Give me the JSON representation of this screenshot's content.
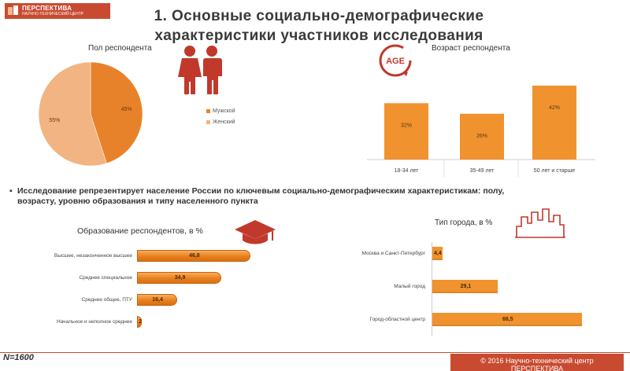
{
  "header": {
    "logo_name": "ПЕРСПЕКТИВА",
    "logo_sub": "НАУЧНО-ТЕХНИЧЕСКИЙ ЦЕНТР",
    "title_line1": "1. Основные социально-демографические",
    "title_line2": "характеристики участников исследования"
  },
  "gender": {
    "title": "Пол респондента",
    "legend": [
      "Мужской",
      "Женский"
    ],
    "icon": "people-icon"
  },
  "age": {
    "title": "Возраст респондента",
    "badge": "AGE"
  },
  "bullet": {
    "text": "Исследование репрезентирует население России по ключевым социально-демографическим характеристикам: полу, возрасту, уровню образования и типу населенного пункта"
  },
  "education": {
    "title": "Образование респондентов, в %",
    "icon": "graduation-cap-icon"
  },
  "city": {
    "title": "Тип города, в %",
    "icon": "city-skyline-icon"
  },
  "footer": {
    "sample": "N=1600",
    "copyright": "© 2016 Научно-технический центр",
    "copyright2": "ПЕРСПЕКТИВА"
  },
  "colors": {
    "brand": "#c84b31",
    "male": "#e8822a",
    "female": "#f2b483",
    "bar": "#f0922e"
  },
  "chart_data": [
    {
      "type": "pie",
      "title": "Пол респондента",
      "categories": [
        "Мужской",
        "Женский"
      ],
      "values": [
        45,
        55
      ],
      "labels": [
        "45%",
        "55%"
      ],
      "legend": "right"
    },
    {
      "type": "bar",
      "title": "Возраст респондента",
      "categories": [
        "18-34 лет",
        "35-49 лет",
        "50 лет и старше"
      ],
      "values": [
        32,
        26,
        42
      ],
      "labels": [
        "32%",
        "26%",
        "42%"
      ]
    },
    {
      "type": "bar",
      "orientation": "horizontal",
      "title": "Образование респондентов, в %",
      "categories": [
        "Высшее, незаконченное высшее",
        "Среднее специальное",
        "Среднее общее, ПТУ",
        "Начальное и неполное среднее"
      ],
      "values": [
        46.8,
        34.9,
        16.4,
        2
      ],
      "labels": [
        "46,8",
        "34,9",
        "16,4",
        "2"
      ],
      "xlim": [
        0,
        50
      ]
    },
    {
      "type": "bar",
      "orientation": "horizontal",
      "title": "Тип города, в %",
      "categories": [
        "Москва и Санкт-Петербург",
        "Малый город",
        "Город-областной центр"
      ],
      "values": [
        4.4,
        29.1,
        66.5
      ],
      "labels": [
        "4,4",
        "29,1",
        "66,5"
      ],
      "xlim": [
        0,
        70
      ]
    }
  ]
}
